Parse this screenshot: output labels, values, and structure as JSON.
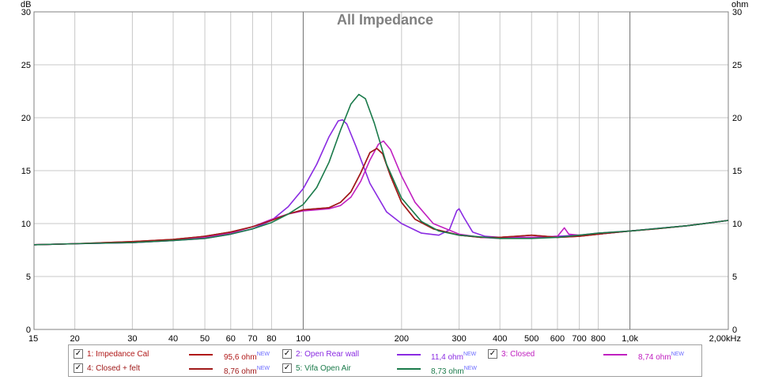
{
  "chart_data": {
    "type": "line",
    "title": "All Impedance",
    "y_unit_left": "dB",
    "y_unit_right": "ohm",
    "x_scale": "log",
    "xlim": [
      15,
      2000
    ],
    "ylim": [
      0,
      30
    ],
    "grid": true,
    "y_ticks": [
      0,
      5,
      10,
      15,
      20,
      25,
      30
    ],
    "x_ticks": [
      {
        "value": 15,
        "label": "15"
      },
      {
        "value": 20,
        "label": "20"
      },
      {
        "value": 30,
        "label": "30"
      },
      {
        "value": 40,
        "label": "40"
      },
      {
        "value": 50,
        "label": "50"
      },
      {
        "value": 60,
        "label": "60"
      },
      {
        "value": 70,
        "label": "70"
      },
      {
        "value": 80,
        "label": "80"
      },
      {
        "value": 100,
        "label": "100"
      },
      {
        "value": 200,
        "label": "200"
      },
      {
        "value": 300,
        "label": "300"
      },
      {
        "value": 400,
        "label": "400"
      },
      {
        "value": 500,
        "label": "500"
      },
      {
        "value": 600,
        "label": "600"
      },
      {
        "value": 700,
        "label": "700"
      },
      {
        "value": 800,
        "label": "800"
      },
      {
        "value": 1000,
        "label": "1,0k"
      },
      {
        "value": 2000,
        "label": "2,00kHz"
      }
    ],
    "series": [
      {
        "name": "1: Impedance Cal",
        "color": "#b01818",
        "points": [
          [
            15,
            8.0
          ],
          [
            20,
            8.1
          ],
          [
            30,
            8.3
          ],
          [
            40,
            8.5
          ],
          [
            50,
            8.8
          ],
          [
            60,
            9.2
          ],
          [
            70,
            9.7
          ],
          [
            80,
            10.3
          ],
          [
            90,
            10.9
          ],
          [
            100,
            11.3
          ],
          [
            110,
            11.4
          ],
          [
            120,
            11.5
          ],
          [
            130,
            12.0
          ],
          [
            140,
            13.0
          ],
          [
            150,
            14.8
          ],
          [
            160,
            16.7
          ],
          [
            168,
            17.1
          ],
          [
            175,
            16.6
          ],
          [
            185,
            14.5
          ],
          [
            200,
            12.0
          ],
          [
            220,
            10.4
          ],
          [
            250,
            9.5
          ],
          [
            300,
            8.9
          ],
          [
            350,
            8.7
          ],
          [
            400,
            8.7
          ],
          [
            450,
            8.8
          ],
          [
            500,
            8.9
          ],
          [
            550,
            8.8
          ],
          [
            600,
            8.7
          ],
          [
            700,
            8.8
          ],
          [
            800,
            9.0
          ],
          [
            1000,
            9.3
          ],
          [
            1200,
            9.5
          ],
          [
            1500,
            9.8
          ],
          [
            2000,
            10.3
          ]
        ]
      },
      {
        "name": "2: Open Rear wall",
        "color": "#8a2be2",
        "points": [
          [
            15,
            8.0
          ],
          [
            20,
            8.1
          ],
          [
            30,
            8.2
          ],
          [
            40,
            8.4
          ],
          [
            50,
            8.6
          ],
          [
            60,
            9.0
          ],
          [
            70,
            9.5
          ],
          [
            80,
            10.3
          ],
          [
            90,
            11.6
          ],
          [
            100,
            13.3
          ],
          [
            110,
            15.6
          ],
          [
            120,
            18.2
          ],
          [
            128,
            19.7
          ],
          [
            132,
            19.8
          ],
          [
            136,
            19.4
          ],
          [
            145,
            17.3
          ],
          [
            160,
            13.8
          ],
          [
            180,
            11.1
          ],
          [
            200,
            10.0
          ],
          [
            230,
            9.1
          ],
          [
            260,
            8.9
          ],
          [
            280,
            9.4
          ],
          [
            295,
            11.2
          ],
          [
            300,
            11.4
          ],
          [
            310,
            10.6
          ],
          [
            330,
            9.2
          ],
          [
            360,
            8.8
          ],
          [
            400,
            8.7
          ],
          [
            500,
            8.7
          ],
          [
            600,
            8.8
          ],
          [
            700,
            8.9
          ],
          [
            800,
            9.0
          ],
          [
            1000,
            9.3
          ],
          [
            1500,
            9.8
          ],
          [
            2000,
            10.3
          ]
        ]
      },
      {
        "name": "3: Closed",
        "color": "#c020c0",
        "points": [
          [
            15,
            8.0
          ],
          [
            20,
            8.1
          ],
          [
            30,
            8.2
          ],
          [
            40,
            8.4
          ],
          [
            50,
            8.7
          ],
          [
            60,
            9.1
          ],
          [
            70,
            9.7
          ],
          [
            80,
            10.4
          ],
          [
            90,
            10.9
          ],
          [
            100,
            11.2
          ],
          [
            110,
            11.3
          ],
          [
            120,
            11.4
          ],
          [
            130,
            11.7
          ],
          [
            140,
            12.5
          ],
          [
            150,
            14.0
          ],
          [
            160,
            16.0
          ],
          [
            170,
            17.5
          ],
          [
            176,
            17.8
          ],
          [
            185,
            17.0
          ],
          [
            200,
            14.5
          ],
          [
            220,
            12.0
          ],
          [
            250,
            10.0
          ],
          [
            300,
            9.0
          ],
          [
            350,
            8.7
          ],
          [
            400,
            8.6
          ],
          [
            500,
            8.7
          ],
          [
            600,
            8.8
          ],
          [
            630,
            9.6
          ],
          [
            650,
            9.0
          ],
          [
            700,
            8.9
          ],
          [
            800,
            9.1
          ],
          [
            1000,
            9.3
          ],
          [
            1500,
            9.8
          ],
          [
            2000,
            10.3
          ]
        ]
      },
      {
        "name": "4: Closed + felt",
        "color": "#a01a1a",
        "points": [
          [
            15,
            8.0
          ],
          [
            20,
            8.1
          ],
          [
            30,
            8.3
          ],
          [
            40,
            8.5
          ],
          [
            50,
            8.8
          ],
          [
            60,
            9.2
          ],
          [
            70,
            9.7
          ],
          [
            80,
            10.3
          ],
          [
            90,
            10.9
          ],
          [
            100,
            11.3
          ],
          [
            110,
            11.4
          ],
          [
            120,
            11.5
          ],
          [
            130,
            12.0
          ],
          [
            140,
            13.0
          ],
          [
            150,
            14.8
          ],
          [
            160,
            16.7
          ],
          [
            168,
            17.1
          ],
          [
            175,
            16.6
          ],
          [
            185,
            14.5
          ],
          [
            200,
            12.0
          ],
          [
            220,
            10.4
          ],
          [
            250,
            9.5
          ],
          [
            300,
            8.9
          ],
          [
            350,
            8.7
          ],
          [
            400,
            8.7
          ],
          [
            450,
            8.8
          ],
          [
            500,
            8.9
          ],
          [
            550,
            8.8
          ],
          [
            600,
            8.7
          ],
          [
            700,
            8.8
          ],
          [
            800,
            9.0
          ],
          [
            1000,
            9.3
          ],
          [
            1200,
            9.5
          ],
          [
            1500,
            9.8
          ],
          [
            2000,
            10.3
          ]
        ]
      },
      {
        "name": "5: Vifa Open Air",
        "color": "#1a7a4a",
        "points": [
          [
            15,
            8.0
          ],
          [
            20,
            8.1
          ],
          [
            30,
            8.2
          ],
          [
            40,
            8.4
          ],
          [
            50,
            8.6
          ],
          [
            60,
            9.0
          ],
          [
            70,
            9.5
          ],
          [
            80,
            10.1
          ],
          [
            90,
            10.9
          ],
          [
            100,
            11.8
          ],
          [
            110,
            13.4
          ],
          [
            120,
            15.8
          ],
          [
            130,
            18.8
          ],
          [
            140,
            21.3
          ],
          [
            148,
            22.2
          ],
          [
            155,
            21.8
          ],
          [
            165,
            19.5
          ],
          [
            180,
            15.6
          ],
          [
            200,
            12.4
          ],
          [
            230,
            10.2
          ],
          [
            260,
            9.3
          ],
          [
            300,
            8.9
          ],
          [
            400,
            8.6
          ],
          [
            500,
            8.6
          ],
          [
            600,
            8.7
          ],
          [
            700,
            8.9
          ],
          [
            800,
            9.1
          ],
          [
            1000,
            9.3
          ],
          [
            1500,
            9.8
          ],
          [
            2000,
            10.3
          ]
        ]
      }
    ]
  },
  "legend": [
    {
      "name": "1: Impedance Cal",
      "value": "95,6 ohm",
      "badge": "NEW",
      "color": "#b01818",
      "checked": "✓"
    },
    {
      "name": "2: Open Rear wall",
      "value": "11,4 ohm",
      "badge": "NEW",
      "color": "#8a2be2",
      "checked": "✓"
    },
    {
      "name": "3: Closed",
      "value": "8,74 ohm",
      "badge": "NEW",
      "color": "#c020c0",
      "checked": "✓"
    },
    {
      "name": "4: Closed + felt",
      "value": "8,76 ohm",
      "badge": "NEW",
      "color": "#a01a1a",
      "checked": "✓"
    },
    {
      "name": "5: Vifa Open Air",
      "value": "8,73 ohm",
      "badge": "NEW",
      "color": "#1a7a4a",
      "checked": "✓"
    }
  ]
}
